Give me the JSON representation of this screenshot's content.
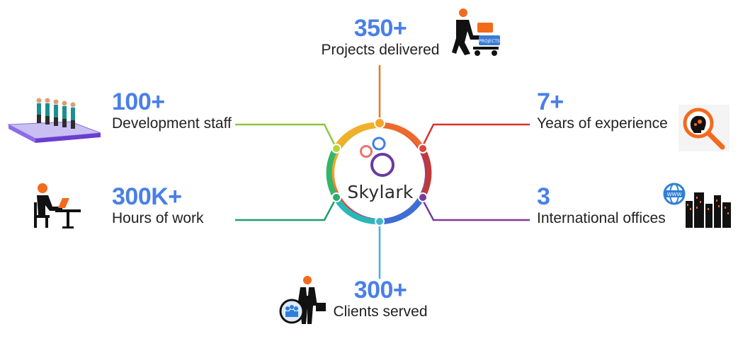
{
  "brand": {
    "name": "Skylark",
    "logo_icon": "bubbles-logo-icon"
  },
  "colors": {
    "number": "#4a7fe8",
    "label": "#222222",
    "orange": "#f08a24",
    "red": "#d7322e",
    "purple": "#7a3a9a",
    "cyan": "#3fb6d0",
    "green": "#2eaa6b",
    "lime": "#8cc63f"
  },
  "stats": {
    "projects": {
      "value": "350+",
      "label": "Projects delivered",
      "icon": "worker-with-cart-icon"
    },
    "staff": {
      "value": "100+",
      "label": "Development staff",
      "icon": "team-on-platform-icon"
    },
    "experience": {
      "value": "7+",
      "label": "Years of experience",
      "icon": "magnifier-brain-icon"
    },
    "hours": {
      "value": "300K+",
      "label": "Hours of work",
      "icon": "person-at-desk-icon"
    },
    "offices": {
      "value": "3",
      "label": "International offices",
      "icon": "globe-city-icon"
    },
    "clients": {
      "value": "300+",
      "label": "Clients served",
      "icon": "businessman-with-clients-icon"
    }
  }
}
